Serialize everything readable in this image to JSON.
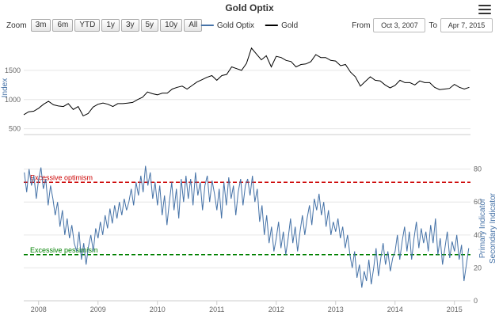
{
  "header": {
    "title": "Gold Optix"
  },
  "toolbar": {
    "zoom_label": "Zoom",
    "zoom_buttons": [
      "3m",
      "6m",
      "YTD",
      "1y",
      "3y",
      "5y",
      "10y",
      "All"
    ],
    "from_label": "From",
    "to_label": "To",
    "from_value": "Oct 3, 2007",
    "to_value": "Apr 7, 2015"
  },
  "legend": [
    {
      "label": "Gold Optix",
      "color": "#4572A7"
    },
    {
      "label": "Gold",
      "color": "#000000"
    }
  ],
  "chart_data": {
    "type": "line",
    "title": "Gold Optix",
    "x_range": [
      2007.75,
      2015.27
    ],
    "x_ticks": [
      2008,
      2009,
      2010,
      2011,
      2012,
      2013,
      2014,
      2015
    ],
    "panels": [
      {
        "name": "Gold price",
        "ylabel": "Index",
        "ticks_side": "left",
        "yticks": [
          500,
          1000,
          1500
        ],
        "ylim": [
          400,
          2000
        ],
        "series": [
          {
            "name": "Gold",
            "color": "#000000",
            "x_start": 2007.75,
            "x_step": 0.08333,
            "values": [
              740,
              790,
              800,
              850,
              920,
              970,
              910,
              890,
              880,
              930,
              830,
              880,
              720,
              760,
              870,
              920,
              940,
              920,
              880,
              930,
              930,
              940,
              950,
              1000,
              1040,
              1130,
              1100,
              1080,
              1110,
              1110,
              1180,
              1210,
              1230,
              1180,
              1240,
              1300,
              1340,
              1380,
              1410,
              1330,
              1410,
              1430,
              1560,
              1530,
              1500,
              1620,
              1880,
              1780,
              1680,
              1750,
              1560,
              1740,
              1720,
              1670,
              1650,
              1560,
              1600,
              1610,
              1650,
              1770,
              1720,
              1720,
              1670,
              1660,
              1580,
              1600,
              1470,
              1390,
              1230,
              1310,
              1390,
              1330,
              1320,
              1250,
              1200,
              1240,
              1330,
              1290,
              1290,
              1250,
              1320,
              1290,
              1290,
              1210,
              1170,
              1180,
              1190,
              1260,
              1210,
              1180,
              1210
            ]
          }
        ]
      },
      {
        "name": "Gold Optix",
        "ylabel_right": "Primary Indicator",
        "ylabel_right2": "Secondary Indicator",
        "ticks_side": "right",
        "yticks": [
          0,
          20,
          40,
          60,
          80
        ],
        "ylim": [
          0,
          88
        ],
        "reference_lines": [
          {
            "label": "Excessive optimism",
            "value": 72,
            "color": "#cc0000"
          },
          {
            "label": "Excessive pessimism",
            "value": 28,
            "color": "#008000"
          }
        ],
        "series": [
          {
            "name": "Gold Optix",
            "color": "#4572A7",
            "x_start": 2007.76,
            "x_step": 0.04,
            "values": [
              78,
              66,
              80,
              70,
              76,
              62,
              74,
              81,
              68,
              74,
              58,
              70,
              62,
              52,
              60,
              45,
              55,
              40,
              50,
              38,
              46,
              35,
              30,
              42,
              25,
              35,
              22,
              33,
              40,
              30,
              44,
              38,
              48,
              40,
              52,
              44,
              56,
              47,
              58,
              50,
              60,
              52,
              62,
              55,
              60,
              68,
              58,
              72,
              64,
              76,
              66,
              82,
              70,
              78,
              62,
              72,
              58,
              70,
              52,
              64,
              46,
              60,
              72,
              55,
              68,
              50,
              74,
              60,
              76,
              62,
              74,
              58,
              78,
              64,
              72,
              55,
              70,
              76,
              60,
              73,
              65,
              55,
              68,
              50,
              72,
              58,
              75,
              62,
              70,
              52,
              66,
              74,
              58,
              70,
              74,
              64,
              76,
              60,
              68,
              48,
              58,
              40,
              52,
              35,
              45,
              30,
              38,
              48,
              32,
              42,
              28,
              38,
              50,
              35,
              45,
              30,
              42,
              52,
              40,
              50,
              58,
              46,
              62,
              55,
              65,
              52,
              60,
              45,
              55,
              40,
              48,
              42,
              50,
              38,
              45,
              32,
              40,
              28,
              20,
              30,
              14,
              22,
              8,
              18,
              12,
              25,
              10,
              20,
              32,
              15,
              26,
              35,
              22,
              30,
              18,
              26,
              30,
              40,
              25,
              36,
              45,
              30,
              42,
              25,
              38,
              48,
              32,
              44,
              35,
              42,
              30,
              46,
              35,
              50,
              28,
              38,
              22,
              32,
              42,
              26,
              36,
              30,
              40,
              25,
              34,
              12,
              22,
              32
            ]
          }
        ]
      }
    ]
  }
}
